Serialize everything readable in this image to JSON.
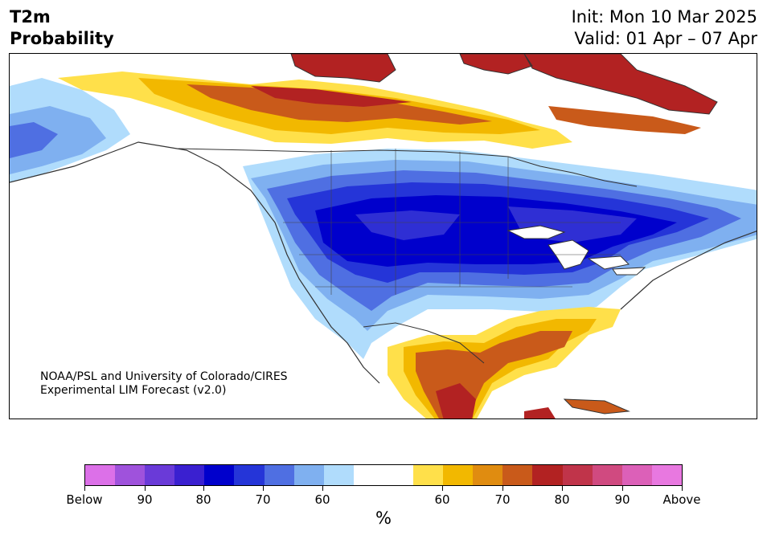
{
  "title": {
    "line1": "T2m",
    "line2": "Probability",
    "init": "Init: Mon 10 Mar 2025",
    "valid": "Valid: 01 Apr – 07 Apr"
  },
  "map": {
    "credit_line1": "NOAA/PSL and University of Colorado/CIRES",
    "credit_line2": "Experimental LIM Forecast (v2.0)",
    "region": "North America",
    "below_colors": [
      "#2f2fd4",
      "#0000cc",
      "#2535d8",
      "#4f6fe2",
      "#7fb0f0",
      "#b0dcfc"
    ],
    "above_colors": [
      "#ffe04a",
      "#f2b800",
      "#e08c10",
      "#c95a1a",
      "#b22222",
      "#c0344a"
    ]
  },
  "colorbar": {
    "colors": [
      "#dc70e8",
      "#9f52dc",
      "#6a3ad8",
      "#3a20d0",
      "#0000cc",
      "#2535d8",
      "#4f6fe2",
      "#7fb0f0",
      "#b0dcfc",
      "#ffffff",
      "#ffffff",
      "#ffe04a",
      "#f2b800",
      "#e08c10",
      "#c95a1a",
      "#b22222",
      "#c0344a",
      "#d04a80",
      "#dc60b8",
      "#e878e0"
    ],
    "tick_labels": [
      "Below",
      "90",
      "80",
      "70",
      "60",
      "60",
      "70",
      "80",
      "90",
      "Above"
    ],
    "unit": "%"
  }
}
